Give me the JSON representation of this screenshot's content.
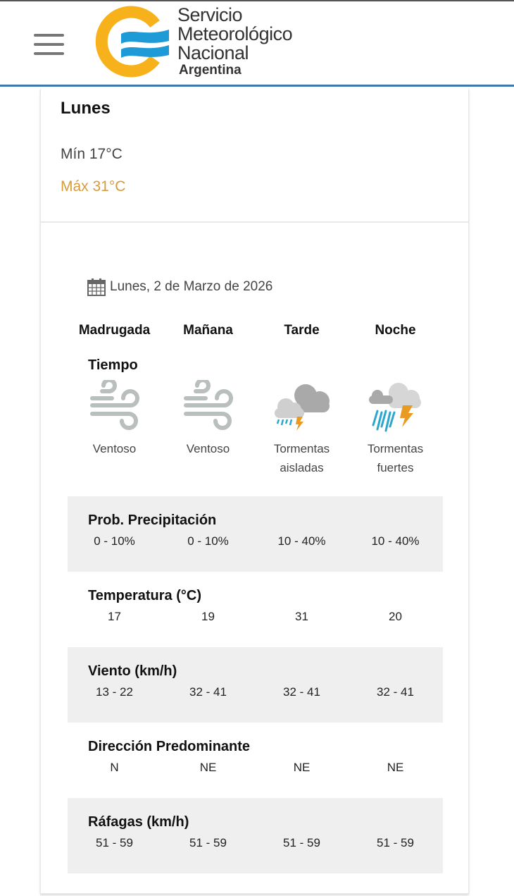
{
  "header": {
    "menu_icon": "hamburger-icon",
    "logo": {
      "line1": "Servicio",
      "line2": "Meteorológico",
      "line3": "Nacional",
      "line4": "Argentina",
      "colors": {
        "sun": "#f7b21b",
        "waves": "#1e9ad6"
      }
    },
    "accent": "#3b78ad"
  },
  "summary": {
    "day": "Lunes",
    "min": "Mín 17°C",
    "max": "Máx 31°C",
    "max_color": "#d69b3a"
  },
  "forecast": {
    "date": "Lunes, 2 de Marzo de 2026",
    "periods": [
      "Madrugada",
      "Mañana",
      "Tarde",
      "Noche"
    ],
    "weather_title": "Tiempo",
    "weather": [
      {
        "icon": "windy-icon",
        "desc": "Ventoso"
      },
      {
        "icon": "windy-icon",
        "desc": "Ventoso"
      },
      {
        "icon": "isolated-storms-icon",
        "desc": "Tormentas aisladas"
      },
      {
        "icon": "strong-storms-icon",
        "desc": "Tormentas fuertes"
      }
    ],
    "rows": [
      {
        "title": "Prob. Precipitación",
        "values": [
          "0 - 10%",
          "0 - 10%",
          "10 - 40%",
          "10 - 40%"
        ]
      },
      {
        "title": "Temperatura (°C)",
        "values": [
          "17",
          "19",
          "31",
          "20"
        ]
      },
      {
        "title": "Viento (km/h)",
        "values": [
          "13 - 22",
          "32 - 41",
          "32 - 41",
          "32 - 41"
        ]
      },
      {
        "title": "Dirección Predominante",
        "values": [
          "N",
          "NE",
          "NE",
          "NE"
        ]
      },
      {
        "title": "Ráfagas (km/h)",
        "values": [
          "51 - 59",
          "51 - 59",
          "51 - 59",
          "51 - 59"
        ]
      }
    ]
  }
}
